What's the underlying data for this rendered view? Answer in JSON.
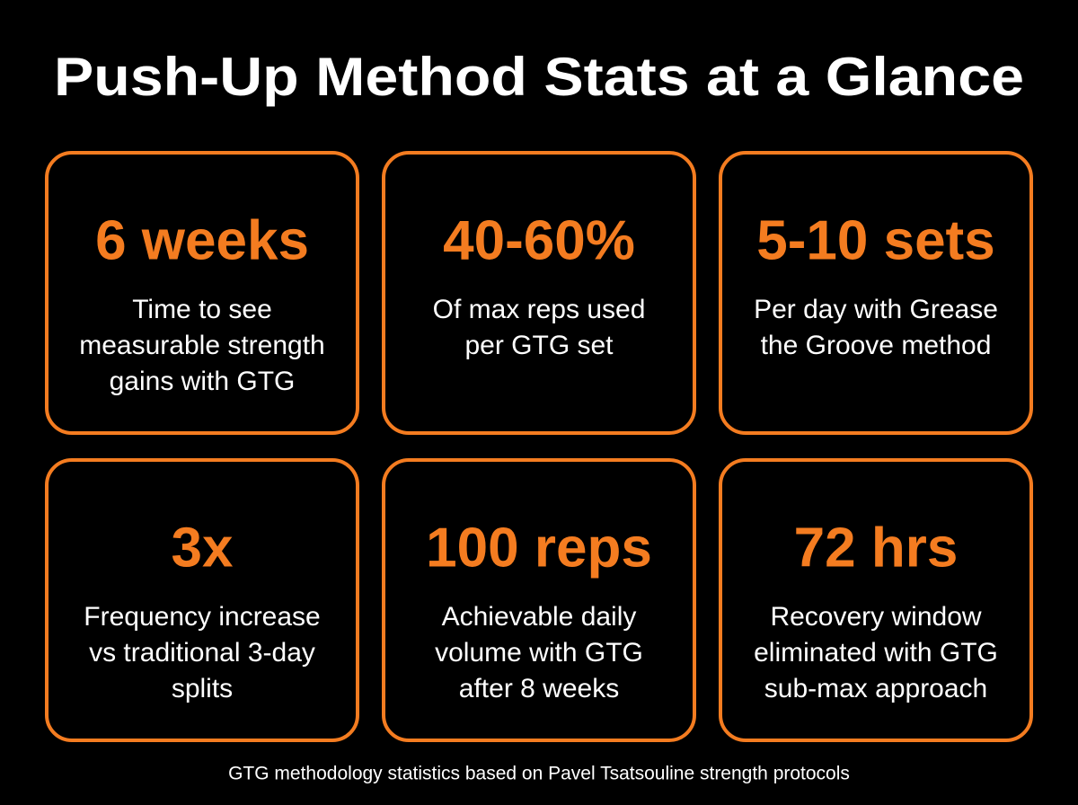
{
  "header": {
    "title": "Push-Up Method Stats at a Glance"
  },
  "cards": [
    {
      "stat": "6 weeks",
      "description": [
        "Time to see",
        "measurable strength",
        "gains with GTG"
      ]
    },
    {
      "stat": "40-60%",
      "description": [
        "Of max reps used",
        "per GTG set"
      ]
    },
    {
      "stat": "5-10 sets",
      "description": [
        "Per day with Grease",
        "the Groove method"
      ]
    },
    {
      "stat": "3x",
      "description": [
        "Frequency increase",
        "vs traditional 3-day",
        "splits"
      ]
    },
    {
      "stat": "100 reps",
      "description": [
        "Achievable daily",
        "volume with GTG",
        "after 8 weeks"
      ]
    },
    {
      "stat": "72 hrs",
      "description": [
        "Recovery window",
        "eliminated with GTG",
        "sub-max approach"
      ]
    }
  ],
  "footer": {
    "note": "GTG methodology statistics based on Pavel Tsatsouline strength protocols"
  }
}
